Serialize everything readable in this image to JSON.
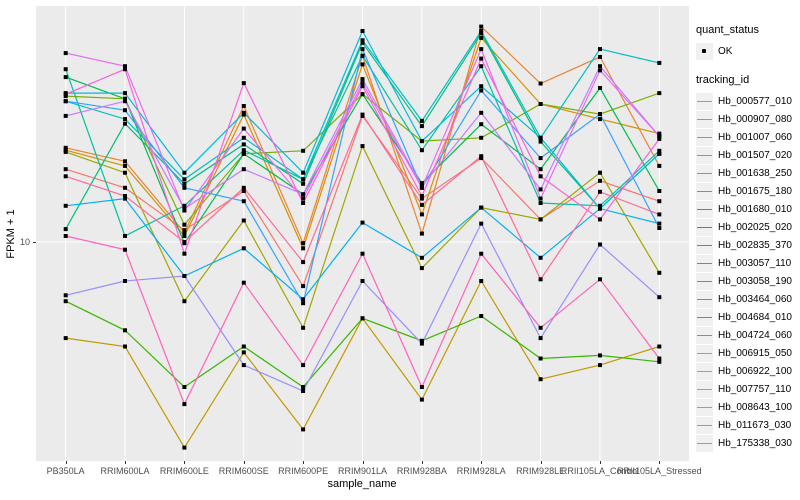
{
  "chart_data": {
    "type": "line",
    "title": "",
    "xlabel": "sample_name",
    "ylabel": "FPKM + 1",
    "y_scale": "log10",
    "y_ticks": [
      {
        "label": "10",
        "value": 10
      }
    ],
    "y_range_approx": [
      1.8,
      60
    ],
    "grid": "vertical-only",
    "panel_bg": "#EBEBEB",
    "grid_color": "#FFFFFF",
    "point_color": "#000000",
    "legend_position": "right",
    "x_categories": [
      "PB350LA",
      "RRIM600LA",
      "RRIM600LE",
      "RRIM600SE",
      "RRIM600PE",
      "RRIM901LA",
      "RRIM928BA",
      "RRIM928LA",
      "RRIM928LE",
      "RRII105LA_Control",
      "RRII105LA_Stressed"
    ],
    "legend": {
      "quant_status": {
        "title": "quant_status",
        "items": [
          {
            "label": "OK",
            "marker": "black-point"
          }
        ]
      },
      "tracking": {
        "title": "tracking_id"
      }
    },
    "series": [
      {
        "name": "Hb_000577_010",
        "color": "#F8766D",
        "values": [
          18.0,
          15.5,
          11.0,
          15.1,
          7.0,
          27.7,
          14.2,
          19.7,
          12.0,
          16.4,
          13.9
        ]
      },
      {
        "name": "Hb_000907_080",
        "color": "#EA8331",
        "values": [
          21.4,
          19.2,
          10.8,
          30.0,
          9.9,
          45.0,
          10.7,
          57.0,
          36.0,
          44.6,
          18.5
        ]
      },
      {
        "name": "Hb_001007_060",
        "color": "#D89000",
        "values": [
          21.0,
          18.5,
          10.5,
          28.0,
          9.5,
          42.0,
          12.5,
          52.0,
          30.5,
          27.0,
          24.0
        ]
      },
      {
        "name": "Hb_001507_020",
        "color": "#C09B00",
        "values": [
          4.6,
          4.3,
          1.9,
          4.1,
          2.2,
          5.4,
          2.8,
          7.3,
          3.3,
          3.7,
          4.3
        ]
      },
      {
        "name": "Hb_001638_250",
        "color": "#A3A500",
        "values": [
          20.7,
          17.5,
          6.2,
          11.9,
          5.0,
          21.7,
          8.1,
          13.2,
          12.0,
          17.5,
          7.8
        ]
      },
      {
        "name": "Hb_001675_180",
        "color": "#7CAE00",
        "values": [
          32.5,
          31.8,
          11.5,
          20.4,
          20.9,
          33.0,
          22.6,
          23.2,
          30.5,
          28.1,
          33.3
        ]
      },
      {
        "name": "Hb_001680_010",
        "color": "#39B600",
        "values": [
          6.2,
          4.9,
          3.1,
          4.3,
          3.1,
          5.4,
          4.5,
          5.5,
          3.9,
          4.0,
          3.8
        ]
      },
      {
        "name": "Hb_002025_020",
        "color": "#00BB4E",
        "values": [
          37.9,
          31.8,
          9.9,
          20.4,
          14.7,
          33.0,
          16.1,
          25.9,
          18.0,
          34.7,
          15.1
        ]
      },
      {
        "name": "Hb_002835_370",
        "color": "#00BF7D",
        "values": [
          11.1,
          26.0,
          16.0,
          22.0,
          16.0,
          50.0,
          25.5,
          54.0,
          22.5,
          13.1,
          20.4
        ]
      },
      {
        "name": "Hb_003057_110",
        "color": "#00C1A3",
        "values": [
          40.4,
          10.5,
          13.4,
          21.0,
          16.6,
          45.0,
          21.0,
          41.4,
          13.7,
          13.4,
          20.9
        ]
      },
      {
        "name": "Hb_003058_190",
        "color": "#00BFC4",
        "values": [
          31.2,
          27.0,
          16.6,
          23.2,
          16.6,
          51.0,
          26.6,
          55.0,
          23.2,
          47.5,
          42.5
        ]
      },
      {
        "name": "Hb_003464_060",
        "color": "#00BBDA",
        "values": [
          33.3,
          33.3,
          17.5,
          28.4,
          17.5,
          55.0,
          22.6,
          35.2,
          23.2,
          13.1,
          20.4
        ]
      },
      {
        "name": "Hb_004684_010",
        "color": "#00B0F6",
        "values": [
          13.4,
          14.2,
          7.6,
          9.5,
          6.3,
          11.7,
          8.8,
          13.2,
          8.8,
          13.1,
          11.6
        ]
      },
      {
        "name": "Hb_004724_060",
        "color": "#35A2FF",
        "values": [
          31.2,
          29.0,
          15.5,
          13.9,
          6.1,
          47.5,
          15.5,
          34.0,
          19.7,
          28.1,
          11.2
        ]
      },
      {
        "name": "Hb_006915_050",
        "color": "#9590FF",
        "values": [
          6.5,
          7.3,
          7.6,
          3.7,
          3.0,
          7.3,
          4.4,
          11.6,
          4.6,
          9.8,
          6.4
        ]
      },
      {
        "name": "Hb_006922_100",
        "color": "#C77CFF",
        "values": [
          27.7,
          31.2,
          13.1,
          18.0,
          14.7,
          37.3,
          15.7,
          28.4,
          15.3,
          41.4,
          23.5
        ]
      },
      {
        "name": "Hb_007757_110",
        "color": "#E76BF3",
        "values": [
          46.0,
          41.4,
          12.9,
          25.0,
          14.2,
          36.1,
          15.5,
          47.5,
          14.2,
          40.0,
          23.5
        ]
      },
      {
        "name": "Hb_008643_100",
        "color": "#FA62DB",
        "values": [
          33.0,
          40.4,
          9.1,
          36.1,
          13.7,
          35.2,
          14.5,
          44.0,
          17.0,
          12.0,
          23.0
        ]
      },
      {
        "name": "Hb_011673_030",
        "color": "#FF62BC",
        "values": [
          10.5,
          9.4,
          2.7,
          7.2,
          3.7,
          9.1,
          3.1,
          9.1,
          5.0,
          7.4,
          3.9
        ]
      },
      {
        "name": "Hb_175338_030",
        "color": "#FF6A98",
        "values": [
          17.0,
          14.5,
          10.0,
          15.5,
          8.5,
          28.0,
          13.5,
          20.0,
          7.4,
          15.0,
          12.5
        ]
      }
    ]
  }
}
